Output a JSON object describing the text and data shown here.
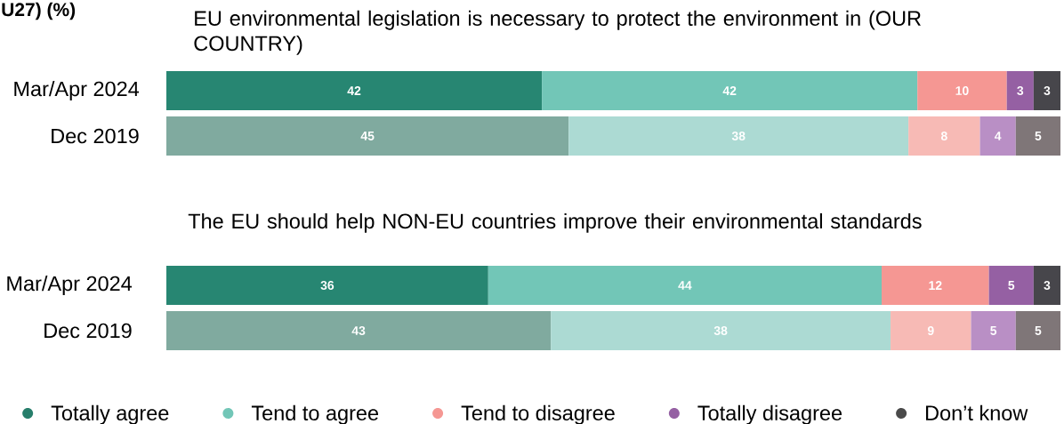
{
  "chart_data": [
    {
      "type": "bar",
      "title": "EU environmental legislation is necessary to protect the environment in (OUR COUNTRY)",
      "annotations": [
        "U27) (%)"
      ],
      "orientation": "horizontal",
      "stacked": true,
      "tick_labels": "y",
      "data_labels": true,
      "categories": [
        "Mar/Apr 2024",
        "Dec 2019"
      ],
      "series": [
        {
          "colors": [
            "#278672",
            "#80aa9f"
          ],
          "values": [
            42,
            45
          ]
        },
        {
          "colors": [
            "#72c6b7",
            "#acdad3"
          ],
          "values": [
            42,
            38
          ]
        },
        {
          "colors": [
            "#f59793",
            "#f7bab5"
          ],
          "values": [
            10,
            8
          ]
        },
        {
          "colors": [
            "#9560a3",
            "#b98fc5"
          ],
          "values": [
            3,
            4
          ]
        },
        {
          "colors": [
            "#47464b",
            "#7f7678"
          ],
          "values": [
            3,
            5
          ]
        }
      ]
    },
    {
      "type": "bar",
      "title": "The EU should help NON-EU countries improve their environmental standards",
      "orientation": "horizontal",
      "stacked": true,
      "tick_labels": "y",
      "data_labels": true,
      "legend": "bottom",
      "categories": [
        "Mar/Apr 2024",
        "Dec 2019"
      ],
      "series": [
        {
          "name": "Totally agree",
          "color": "#277e6b",
          "colors": [
            "#278672",
            "#80aa9f"
          ],
          "values": [
            36,
            43
          ]
        },
        {
          "name": "Tend to agree",
          "color": "#72c6b7",
          "colors": [
            "#72c6b7",
            "#acdad3"
          ],
          "values": [
            44,
            38
          ]
        },
        {
          "name": "Tend to disagree",
          "color": "#f59793",
          "colors": [
            "#f59793",
            "#f7bab5"
          ],
          "values": [
            12,
            9
          ]
        },
        {
          "name": "Totally disagree",
          "color": "#9560a3",
          "colors": [
            "#9560a3",
            "#b98fc5"
          ],
          "values": [
            5,
            5
          ]
        },
        {
          "name": "Don’t know",
          "color": "#4a4a4a",
          "colors": [
            "#47464b",
            "#7f7678"
          ],
          "values": [
            3,
            5
          ]
        }
      ]
    }
  ]
}
